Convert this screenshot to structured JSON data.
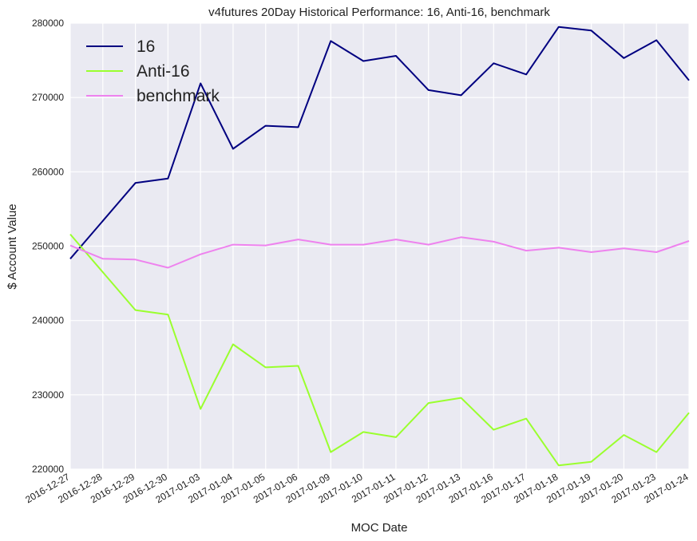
{
  "chart_data": {
    "type": "line",
    "title": "v4futures 20Day Historical Performance: 16, Anti-16, benchmark",
    "xlabel": "MOC Date",
    "ylabel": "$ Account Value",
    "ylim": [
      220000,
      280000
    ],
    "yticks": [
      "220000",
      "230000",
      "240000",
      "250000",
      "260000",
      "270000",
      "280000"
    ],
    "grid": true,
    "legend_position": "top-left",
    "categories": [
      "2016-12-27",
      "2016-12-28",
      "2016-12-29",
      "2016-12-30",
      "2017-01-03",
      "2017-01-04",
      "2017-01-05",
      "2017-01-06",
      "2017-01-09",
      "2017-01-10",
      "2017-01-11",
      "2017-01-12",
      "2017-01-13",
      "2017-01-16",
      "2017-01-17",
      "2017-01-18",
      "2017-01-19",
      "2017-01-20",
      "2017-01-23",
      "2017-01-24"
    ],
    "series": [
      {
        "name": "16",
        "color": "#000080",
        "values": [
          248300,
          253400,
          258500,
          259100,
          271900,
          263100,
          266200,
          266000,
          277600,
          274900,
          275600,
          271000,
          270300,
          274600,
          273100,
          279500,
          279000,
          275300,
          277700,
          272300
        ]
      },
      {
        "name": "Anti-16",
        "color": "#9AFF2E",
        "values": [
          251600,
          246500,
          241400,
          240800,
          228100,
          236800,
          233700,
          233900,
          222300,
          225000,
          224300,
          228900,
          229600,
          225300,
          226800,
          220500,
          221000,
          224600,
          222300,
          227600
        ]
      },
      {
        "name": "benchmark",
        "color": "#EE82EE",
        "values": [
          250100,
          248300,
          248200,
          247100,
          248900,
          250200,
          250100,
          250900,
          250200,
          250200,
          250900,
          250200,
          251200,
          250600,
          249400,
          249800,
          249200,
          249700,
          249200,
          250700
        ]
      }
    ]
  }
}
